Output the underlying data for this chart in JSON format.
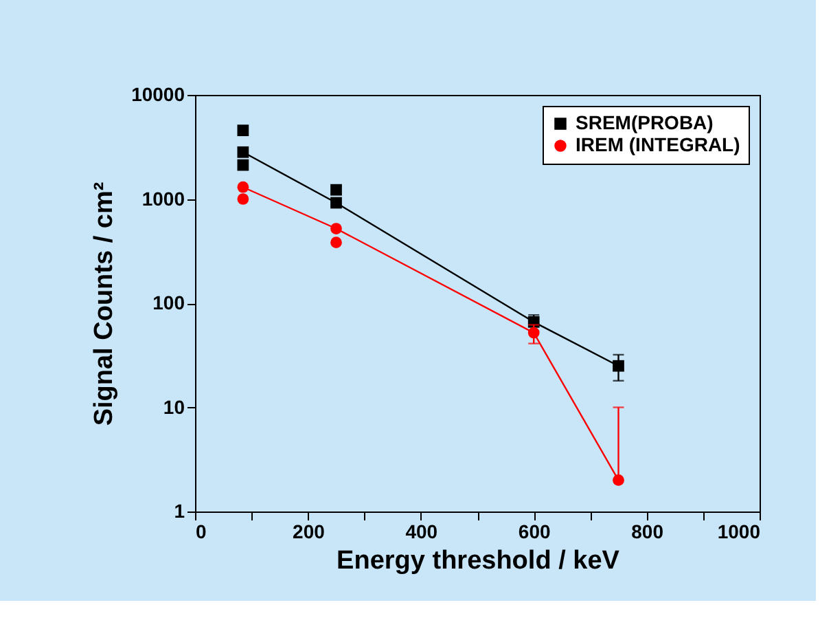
{
  "chart_data": {
    "type": "line",
    "xlabel": "Energy threshold / keV",
    "ylabel": "Signal Counts / cm²",
    "x": [
      85,
      250,
      600,
      750
    ],
    "series": [
      {
        "name": "SREM(PROBA)",
        "color": "#000000",
        "marker": "square",
        "values": [
          2820,
          920,
          66,
          25
        ],
        "errors": [
          null,
          null,
          [
            54,
            77
          ],
          [
            18,
            32
          ]
        ]
      },
      {
        "name": "IREM (INTEGRAL)",
        "color": "#ff0000",
        "marker": "circle",
        "values": [
          1300,
          520,
          52,
          2
        ],
        "errors": [
          null,
          null,
          [
            41,
            62
          ],
          [
            2,
            10
          ]
        ]
      },
      {
        "type": "scatter",
        "color": "#000000",
        "marker": "square",
        "values": [
          4560,
          1225,
          null,
          null
        ]
      },
      {
        "type": "scatter",
        "color": "#000000",
        "marker": "square",
        "values": [
          2120,
          null,
          null,
          null
        ]
      },
      {
        "type": "scatter",
        "color": "#ff0000",
        "marker": "circle",
        "values": [
          1000,
          383,
          null,
          null
        ]
      }
    ],
    "log": "y",
    "xlim": [
      0,
      1000
    ],
    "ylim": [
      1,
      10000
    ],
    "xticks": [
      0,
      {
        "value": 100,
        "label": null
      },
      200,
      {
        "value": 300,
        "label": null
      },
      400,
      {
        "value": 500,
        "label": null
      },
      600,
      {
        "value": 700,
        "label": null
      },
      800,
      {
        "value": 900,
        "label": null
      },
      1000
    ],
    "yticks": [
      1,
      10,
      100,
      1000,
      10000
    ],
    "grid": false,
    "legend": "top right"
  }
}
